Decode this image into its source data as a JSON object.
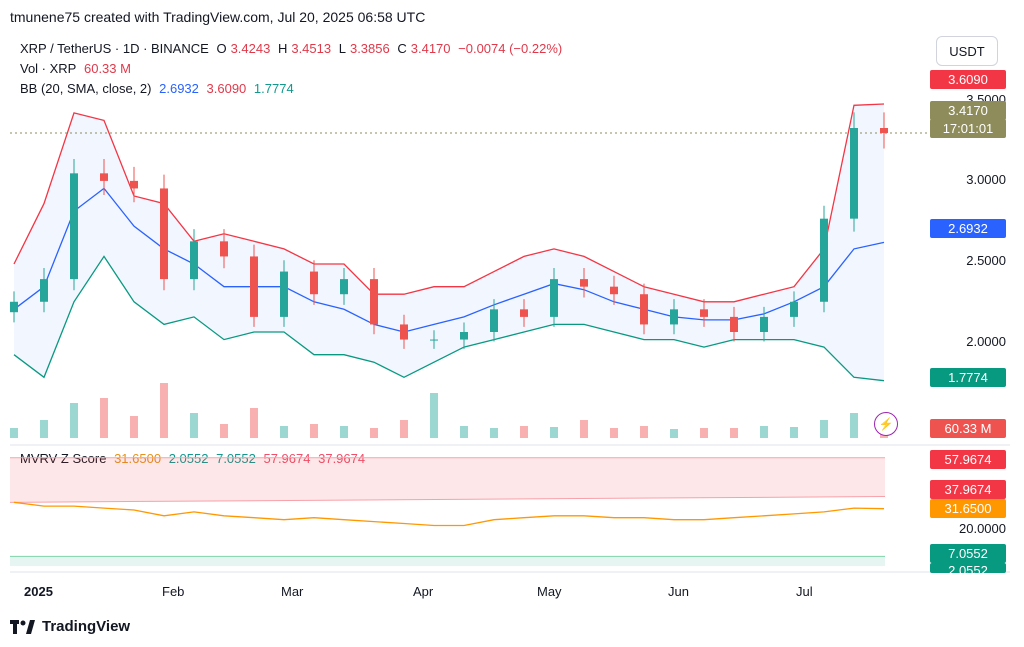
{
  "header": {
    "text": "tmunene75 created with TradingView.com, Jul 20, 2025 06:58 UTC"
  },
  "legend": {
    "symbol": "XRP / TetherUS · 1D · BINANCE",
    "o_label": "O",
    "o": "3.4243",
    "h_label": "H",
    "h": "3.4513",
    "l_label": "L",
    "l": "3.3856",
    "c_label": "C",
    "c": "3.4170",
    "change": "−0.0074 (−0.22%)",
    "vol_label": "Vol · XRP",
    "vol": "60.33 M",
    "bb_label": "BB (20, SMA, close, 2)",
    "bb_mid": "2.6932",
    "bb_up": "3.6090",
    "bb_low": "1.7774",
    "mvrv_label": "MVRV Z Score",
    "mvrv_v1": "31.6500",
    "mvrv_v2": "2.0552",
    "mvrv_v3": "7.0552",
    "mvrv_v4": "57.9674",
    "mvrv_v5": "37.9674"
  },
  "currency": "USDT",
  "price_axis": {
    "ticks": [
      "3.5000",
      "3.0000",
      "2.5000",
      "2.0000"
    ]
  },
  "price_tags": {
    "upper": "3.6090",
    "last": "3.4170",
    "countdown": "17:01:01",
    "mid": "2.6932",
    "lower": "1.7774",
    "volume": "60.33 M"
  },
  "mvrv_axis": {
    "tick": "20.0000",
    "tags": [
      "57.9674",
      "37.9674",
      "31.6500",
      "7.0552",
      "2.0552"
    ]
  },
  "time_axis": [
    "2025",
    "Feb",
    "Mar",
    "Apr",
    "May",
    "Jun",
    "Jul"
  ],
  "footer": {
    "brand": "TradingView"
  },
  "colors": {
    "up": "#26a69a",
    "down": "#ef5350",
    "bb_mid": "#2962ff",
    "bb_up": "#f23645",
    "bb_low": "#089981",
    "mvrv": "#ff9800"
  },
  "chart_data": {
    "type": "candlestick",
    "symbol": "XRP / TetherUS",
    "interval": "1D",
    "x": [
      "2025-01-01",
      "2025-01-08",
      "2025-01-15",
      "2025-01-22",
      "2025-01-29",
      "2025-02-05",
      "2025-02-12",
      "2025-02-19",
      "2025-02-26",
      "2025-03-05",
      "2025-03-12",
      "2025-03-19",
      "2025-03-26",
      "2025-04-02",
      "2025-04-09",
      "2025-04-16",
      "2025-04-23",
      "2025-04-30",
      "2025-05-07",
      "2025-05-14",
      "2025-05-21",
      "2025-05-28",
      "2025-06-04",
      "2025-06-11",
      "2025-06-18",
      "2025-06-25",
      "2025-07-02",
      "2025-07-09",
      "2025-07-16",
      "2025-07-19"
    ],
    "close": [
      2.3,
      2.45,
      3.15,
      3.1,
      3.05,
      2.45,
      2.7,
      2.6,
      2.2,
      2.5,
      2.35,
      2.45,
      2.15,
      2.05,
      2.05,
      2.1,
      2.25,
      2.2,
      2.45,
      2.4,
      2.35,
      2.15,
      2.25,
      2.2,
      2.1,
      2.2,
      2.3,
      2.85,
      3.45,
      3.417
    ],
    "bb_upper": [
      2.55,
      2.95,
      3.55,
      3.5,
      3.0,
      2.95,
      2.7,
      2.75,
      2.7,
      2.65,
      2.55,
      2.55,
      2.35,
      2.35,
      2.4,
      2.4,
      2.5,
      2.6,
      2.65,
      2.6,
      2.5,
      2.4,
      2.35,
      2.3,
      2.3,
      2.35,
      2.4,
      2.65,
      3.6,
      3.609
    ],
    "bb_mid": [
      2.25,
      2.4,
      2.9,
      3.05,
      2.8,
      2.65,
      2.55,
      2.4,
      2.4,
      2.4,
      2.3,
      2.25,
      2.15,
      2.1,
      2.15,
      2.2,
      2.28,
      2.35,
      2.42,
      2.38,
      2.3,
      2.25,
      2.2,
      2.18,
      2.18,
      2.22,
      2.3,
      2.4,
      2.65,
      2.6932
    ],
    "bb_lower": [
      1.95,
      1.8,
      2.3,
      2.6,
      2.3,
      2.15,
      2.2,
      2.05,
      2.1,
      2.1,
      1.95,
      1.95,
      1.9,
      1.8,
      1.9,
      2.0,
      2.05,
      2.1,
      2.15,
      2.15,
      2.1,
      2.05,
      2.05,
      2.0,
      2.05,
      2.05,
      2.05,
      2.0,
      1.8,
      1.7774
    ],
    "volume": [
      10,
      18,
      35,
      40,
      22,
      55,
      25,
      14,
      30,
      12,
      14,
      12,
      10,
      18,
      45,
      12,
      10,
      12,
      11,
      18,
      10,
      12,
      9,
      10,
      10,
      12,
      11,
      18,
      25,
      20
    ],
    "mvrv": [
      35,
      33,
      33,
      32,
      31,
      28,
      30,
      28,
      27,
      26,
      27,
      26,
      25,
      24,
      23,
      23,
      26,
      27,
      28,
      28,
      27,
      27,
      26,
      26,
      27,
      28,
      29,
      30,
      32,
      31.65
    ],
    "y_price_range": [
      1.65,
      3.9
    ],
    "mvrv_levels": {
      "upper_band": 57.9674,
      "lower_band": 37.9674,
      "value": 31.65,
      "green_upper": 7.0552,
      "green_lower": 2.0552
    },
    "x_labels": [
      "2025",
      "Feb",
      "Mar",
      "Apr",
      "May",
      "Jun",
      "Jul"
    ],
    "grid": false
  }
}
